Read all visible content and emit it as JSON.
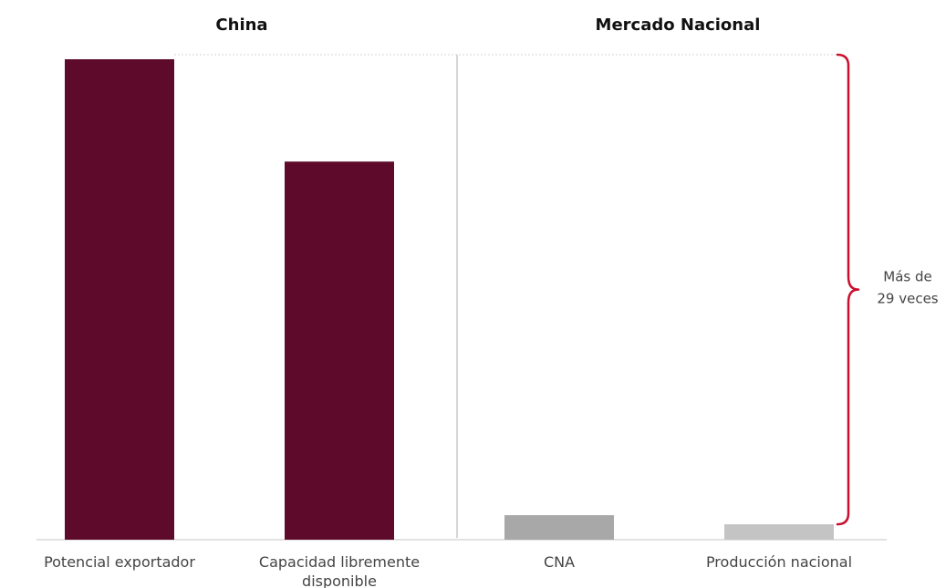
{
  "chart_data": {
    "type": "bar",
    "groups": [
      {
        "title": "China",
        "categories": [
          "Potencial exportador",
          "Capacidad libremente disponible"
        ]
      },
      {
        "title": "Mercado Nacional",
        "categories": [
          "CNA",
          "Producción nacional"
        ]
      }
    ],
    "categories": [
      [
        "Potencial exportador"
      ],
      [
        "Capacidad libremente",
        "disponible"
      ],
      [
        "CNA"
      ],
      [
        "Producción nacional"
      ]
    ],
    "values": [
      100,
      78.7,
      5.1,
      3.2
    ],
    "colors": [
      "#5e0a2b",
      "#5e0a2b",
      "#a8a8a8",
      "#c4c4c4"
    ],
    "ylim": [
      0,
      100
    ],
    "grid": false,
    "annotation": {
      "lines": [
        "Más de",
        "29 veces"
      ],
      "color": "#c8102e"
    }
  }
}
